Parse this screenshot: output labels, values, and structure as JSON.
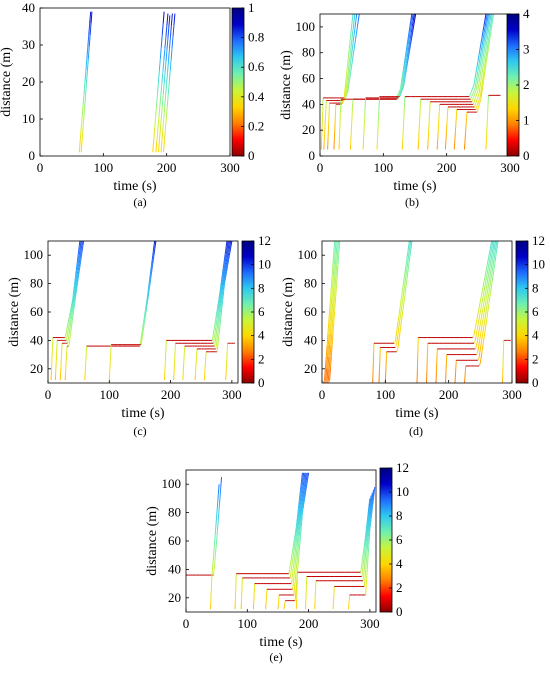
{
  "colormap": [
    "#8b0000",
    "#ff0000",
    "#ff8000",
    "#ffd700",
    "#c8f53a",
    "#6ff0b0",
    "#2fc8f0",
    "#1e6cff",
    "#0000c8",
    "#000080"
  ],
  "chart_data": [
    {
      "type": "line",
      "panel_label": "(a)",
      "xlabel": "time (s)",
      "ylabel": "distance (m)",
      "xlim": [
        0,
        300
      ],
      "ylim": [
        0,
        40
      ],
      "xticks": [
        0,
        100,
        200,
        300
      ],
      "yticks": [
        0,
        10,
        20,
        30,
        40
      ],
      "colorbar": {
        "min": 0,
        "max": 1,
        "ticks": [
          "0",
          "0.2",
          "0.4",
          "0.6",
          "0.8",
          "1"
        ]
      },
      "trajectories": [
        {
          "t": [
            62,
            80
          ],
          "d": [
            1,
            39
          ],
          "speed": 0.93
        },
        {
          "t": [
            65,
            82
          ],
          "d": [
            1,
            39
          ],
          "speed": 0.93
        },
        {
          "t": [
            178,
            196
          ],
          "d": [
            1,
            39
          ],
          "speed": 0.93
        },
        {
          "t": [
            183,
            202
          ],
          "d": [
            1,
            38.5
          ],
          "speed": 0.93
        },
        {
          "t": [
            187,
            205
          ],
          "d": [
            1,
            38
          ],
          "speed": 0.93
        },
        {
          "t": [
            191,
            209
          ],
          "d": [
            1,
            38.5
          ],
          "speed": 0.93
        },
        {
          "t": [
            195,
            213
          ],
          "d": [
            1,
            38.5
          ],
          "speed": 0.93
        }
      ]
    },
    {
      "type": "line",
      "panel_label": "(b)",
      "xlabel": "time (s)",
      "ylabel": "distance (m)",
      "xlim": [
        0,
        300
      ],
      "ylim": [
        0,
        110
      ],
      "xticks": [
        0,
        100,
        200,
        300
      ],
      "yticks": [
        0,
        20,
        40,
        60,
        80,
        100
      ],
      "colorbar": {
        "min": 0,
        "max": 4,
        "ticks": [
          "0",
          "1",
          "2",
          "3",
          "4"
        ]
      },
      "trajectories": [
        {
          "t": [
            2,
            5,
            40,
            44,
            62
          ],
          "d": [
            5,
            45,
            45,
            50,
            110
          ],
          "speed": 3.2
        },
        {
          "t": [
            6,
            10,
            38,
            42,
            58
          ],
          "d": [
            5,
            43,
            43,
            48,
            110
          ],
          "speed": 3.0
        },
        {
          "t": [
            12,
            15,
            36,
            40,
            55
          ],
          "d": [
            5,
            41,
            41,
            46,
            110
          ],
          "speed": 2.7
        },
        {
          "t": [
            22,
            25,
            34,
            38,
            52
          ],
          "d": [
            5,
            40,
            40,
            45,
            110
          ],
          "speed": 2.5
        },
        {
          "t": [
            30,
            33,
            120,
            127,
            145
          ],
          "d": [
            5,
            44,
            44,
            52,
            110
          ],
          "speed": 3.4
        },
        {
          "t": [
            48,
            52,
            122,
            128,
            147
          ],
          "d": [
            5,
            44,
            44,
            52,
            110
          ],
          "speed": 3.3
        },
        {
          "t": [
            68,
            72,
            124,
            130,
            149
          ],
          "d": [
            5,
            45,
            45,
            53,
            110
          ],
          "speed": 3.6
        },
        {
          "t": [
            90,
            94,
            126,
            132,
            151
          ],
          "d": [
            5,
            46,
            46,
            54,
            110
          ],
          "speed": 3.8
        },
        {
          "t": [
            130,
            134,
            236,
            243,
            262
          ],
          "d": [
            5,
            46,
            46,
            55,
            110
          ],
          "speed": 3.5
        },
        {
          "t": [
            155,
            159,
            238,
            245,
            264
          ],
          "d": [
            5,
            44,
            44,
            53,
            110
          ],
          "speed": 3.2
        },
        {
          "t": [
            170,
            174,
            240,
            247,
            266
          ],
          "d": [
            5,
            42,
            42,
            52,
            110
          ],
          "speed": 3.0
        },
        {
          "t": [
            185,
            189,
            242,
            249,
            268
          ],
          "d": [
            5,
            40,
            40,
            50,
            110
          ],
          "speed": 2.8
        },
        {
          "t": [
            198,
            202,
            244,
            251,
            270
          ],
          "d": [
            5,
            38,
            38,
            48,
            110
          ],
          "speed": 2.6
        },
        {
          "t": [
            212,
            216,
            246,
            253,
            272
          ],
          "d": [
            5,
            36,
            36,
            46,
            110
          ],
          "speed": 2.5
        },
        {
          "t": [
            228,
            232,
            248,
            254,
            274
          ],
          "d": [
            5,
            34,
            34,
            44,
            110
          ],
          "speed": 2.4
        },
        {
          "t": [
            262,
            266,
            285
          ],
          "d": [
            5,
            47,
            47
          ],
          "speed": 3.4
        }
      ]
    },
    {
      "type": "line",
      "panel_label": "(c)",
      "xlabel": "time (s)",
      "ylabel": "distance (m)",
      "xlim": [
        0,
        310
      ],
      "ylim": [
        10,
        110
      ],
      "xticks": [
        0,
        100,
        200,
        300
      ],
      "yticks": [
        20,
        40,
        60,
        80,
        100
      ],
      "colorbar": {
        "min": 0,
        "max": 12,
        "ticks": [
          "0",
          "2",
          "4",
          "6",
          "8",
          "10",
          "12"
        ]
      },
      "trajectories": [
        {
          "t": [
            5,
            8,
            28,
            40,
            52
          ],
          "d": [
            12,
            42,
            42,
            68,
            110
          ],
          "speed": 10
        },
        {
          "t": [
            12,
            15,
            30,
            42,
            54
          ],
          "d": [
            12,
            40,
            40,
            70,
            110
          ],
          "speed": 10
        },
        {
          "t": [
            20,
            23,
            32,
            44,
            56
          ],
          "d": [
            12,
            38,
            38,
            72,
            110
          ],
          "speed": 10
        },
        {
          "t": [
            28,
            31,
            34,
            46,
            58
          ],
          "d": [
            12,
            36,
            36,
            74,
            110
          ],
          "speed": 10
        },
        {
          "t": [
            60,
            63,
            150,
            162,
            174
          ],
          "d": [
            12,
            36,
            36,
            70,
            110
          ],
          "speed": 10.5
        },
        {
          "t": [
            100,
            103,
            152,
            164,
            176
          ],
          "d": [
            12,
            37,
            37,
            72,
            110
          ],
          "speed": 10.5
        },
        {
          "t": [
            190,
            193,
            268,
            280,
            292
          ],
          "d": [
            12,
            40,
            40,
            72,
            110
          ],
          "speed": 10.5
        },
        {
          "t": [
            205,
            208,
            270,
            282,
            294
          ],
          "d": [
            12,
            38,
            38,
            74,
            110
          ],
          "speed": 10.5
        },
        {
          "t": [
            220,
            223,
            272,
            284,
            296
          ],
          "d": [
            12,
            36,
            36,
            76,
            110
          ],
          "speed": 10.5
        },
        {
          "t": [
            240,
            243,
            274,
            286,
            298
          ],
          "d": [
            12,
            34,
            34,
            78,
            110
          ],
          "speed": 10.5
        },
        {
          "t": [
            255,
            258,
            276,
            288,
            300
          ],
          "d": [
            12,
            32,
            32,
            80,
            110
          ],
          "speed": 10.5
        },
        {
          "t": [
            290,
            293,
            305
          ],
          "d": [
            12,
            38,
            38
          ],
          "speed": 10.5
        }
      ]
    },
    {
      "type": "line",
      "panel_label": "(d)",
      "xlabel": "time (s)",
      "ylabel": "distance (m)",
      "xlim": [
        0,
        300
      ],
      "ylim": [
        10,
        110
      ],
      "xticks": [
        0,
        100,
        200,
        300
      ],
      "yticks": [
        20,
        40,
        60,
        80,
        100
      ],
      "colorbar": {
        "min": 0,
        "max": 12,
        "ticks": [
          "0",
          "2",
          "4",
          "6",
          "8",
          "10",
          "12"
        ]
      },
      "trajectories": [
        {
          "t": [
            2,
            4,
            20
          ],
          "d": [
            10,
            12,
            110
          ],
          "speed": 7
        },
        {
          "t": [
            4,
            6,
            22
          ],
          "d": [
            10,
            12,
            110
          ],
          "speed": 7
        },
        {
          "t": [
            6,
            8,
            24
          ],
          "d": [
            10,
            12,
            110
          ],
          "speed": 7
        },
        {
          "t": [
            8,
            10,
            26
          ],
          "d": [
            10,
            12,
            110
          ],
          "speed": 7
        },
        {
          "t": [
            10,
            12,
            28
          ],
          "d": [
            10,
            12,
            110
          ],
          "speed": 7
        },
        {
          "t": [
            80,
            82,
            114,
            116,
            138
          ],
          "d": [
            10,
            38,
            38,
            40,
            110
          ],
          "speed": 7.5
        },
        {
          "t": [
            90,
            92,
            116,
            118,
            140
          ],
          "d": [
            10,
            35,
            35,
            38,
            110
          ],
          "speed": 7.5
        },
        {
          "t": [
            100,
            102,
            118,
            120,
            142
          ],
          "d": [
            10,
            32,
            32,
            35,
            110
          ],
          "speed": 7.5
        },
        {
          "t": [
            150,
            152,
            238,
            240,
            268
          ],
          "d": [
            10,
            42,
            42,
            44,
            110
          ],
          "speed": 7.5
        },
        {
          "t": [
            165,
            167,
            240,
            242,
            270
          ],
          "d": [
            10,
            38,
            38,
            40,
            110
          ],
          "speed": 7.5
        },
        {
          "t": [
            180,
            182,
            242,
            244,
            272
          ],
          "d": [
            10,
            34,
            34,
            36,
            110
          ],
          "speed": 7.5
        },
        {
          "t": [
            195,
            197,
            244,
            246,
            274
          ],
          "d": [
            10,
            30,
            30,
            32,
            110
          ],
          "speed": 7.5
        },
        {
          "t": [
            210,
            212,
            246,
            248,
            276
          ],
          "d": [
            10,
            26,
            26,
            28,
            110
          ],
          "speed": 7.5
        },
        {
          "t": [
            225,
            227,
            248,
            250,
            278
          ],
          "d": [
            10,
            22,
            22,
            24,
            110
          ],
          "speed": 7.5
        },
        {
          "t": [
            285,
            287,
            298
          ],
          "d": [
            10,
            40,
            40
          ],
          "speed": 10
        }
      ]
    },
    {
      "type": "line",
      "panel_label": "(e)",
      "xlabel": "time (s)",
      "ylabel": "distance (m)",
      "xlim": [
        0,
        310
      ],
      "ylim": [
        10,
        110
      ],
      "xticks": [
        0,
        100,
        200,
        300
      ],
      "yticks": [
        20,
        40,
        60,
        80,
        100
      ],
      "colorbar": {
        "min": 0,
        "max": 12,
        "ticks": [
          "0",
          "2",
          "4",
          "6",
          "8",
          "10",
          "12"
        ]
      },
      "trajectories": [
        {
          "t": [
            0,
            45,
            50,
            58
          ],
          "d": [
            36,
            36,
            60,
            105
          ],
          "speed": 10
        },
        {
          "t": [
            40,
            42,
            46,
            54
          ],
          "d": [
            12,
            34,
            55,
            100
          ],
          "speed": 10
        },
        {
          "t": [
            80,
            82,
            168,
            180,
            190
          ],
          "d": [
            12,
            37,
            37,
            70,
            108
          ],
          "speed": 10
        },
        {
          "t": [
            90,
            92,
            170,
            182,
            192
          ],
          "d": [
            12,
            34,
            34,
            72,
            108
          ],
          "speed": 10
        },
        {
          "t": [
            110,
            112,
            172,
            184,
            194
          ],
          "d": [
            12,
            30,
            30,
            74,
            108
          ],
          "speed": 10
        },
        {
          "t": [
            130,
            132,
            174,
            186,
            196
          ],
          "d": [
            12,
            26,
            26,
            76,
            108
          ],
          "speed": 10
        },
        {
          "t": [
            150,
            152,
            176,
            188,
            198
          ],
          "d": [
            12,
            22,
            22,
            78,
            108
          ],
          "speed": 10
        },
        {
          "t": [
            160,
            162,
            178,
            190,
            200
          ],
          "d": [
            12,
            18,
            18,
            80,
            108
          ],
          "speed": 10
        },
        {
          "t": [
            180,
            182,
            285,
            292,
            300
          ],
          "d": [
            12,
            38,
            38,
            60,
            90
          ],
          "speed": 10.5
        },
        {
          "t": [
            195,
            197,
            287,
            294,
            302
          ],
          "d": [
            12,
            35,
            35,
            62,
            92
          ],
          "speed": 10.5
        },
        {
          "t": [
            210,
            212,
            289,
            296,
            304
          ],
          "d": [
            12,
            32,
            32,
            64,
            94
          ],
          "speed": 10.5
        },
        {
          "t": [
            240,
            242,
            291,
            298,
            306
          ],
          "d": [
            12,
            28,
            28,
            66,
            96
          ],
          "speed": 10.5
        },
        {
          "t": [
            265,
            267,
            293,
            300,
            308
          ],
          "d": [
            12,
            22,
            22,
            68,
            98
          ],
          "speed": 10.5
        }
      ]
    }
  ]
}
